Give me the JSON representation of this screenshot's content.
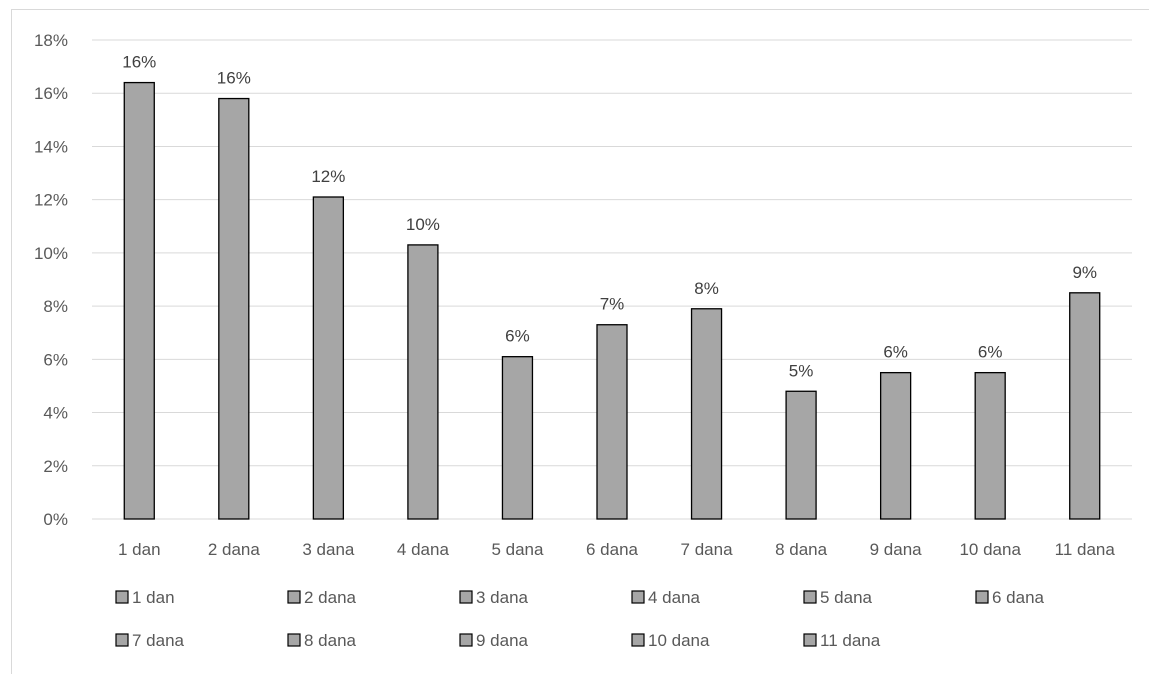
{
  "chart_data": {
    "type": "bar",
    "categories": [
      "1 dan",
      "2 dana",
      "3 dana",
      "4 dana",
      "5 dana",
      "6 dana",
      "7 dana",
      "8 dana",
      "9 dana",
      "10 dana",
      "11 dana"
    ],
    "values": [
      16.4,
      15.8,
      12.1,
      10.3,
      6.1,
      7.3,
      7.9,
      4.8,
      5.5,
      5.5,
      8.5
    ],
    "data_labels": [
      "16%",
      "16%",
      "12%",
      "10%",
      "6%",
      "7%",
      "8%",
      "5%",
      "6%",
      "6%",
      "9%"
    ],
    "y_ticks": [
      "0%",
      "2%",
      "4%",
      "6%",
      "8%",
      "10%",
      "12%",
      "14%",
      "16%",
      "18%"
    ],
    "ylim": [
      0,
      18
    ],
    "grid": true,
    "legend_position": "bottom",
    "bar_color": "#a6a6a6",
    "bar_edge_color": "#000000",
    "grid_color": "#d9d9d9"
  }
}
